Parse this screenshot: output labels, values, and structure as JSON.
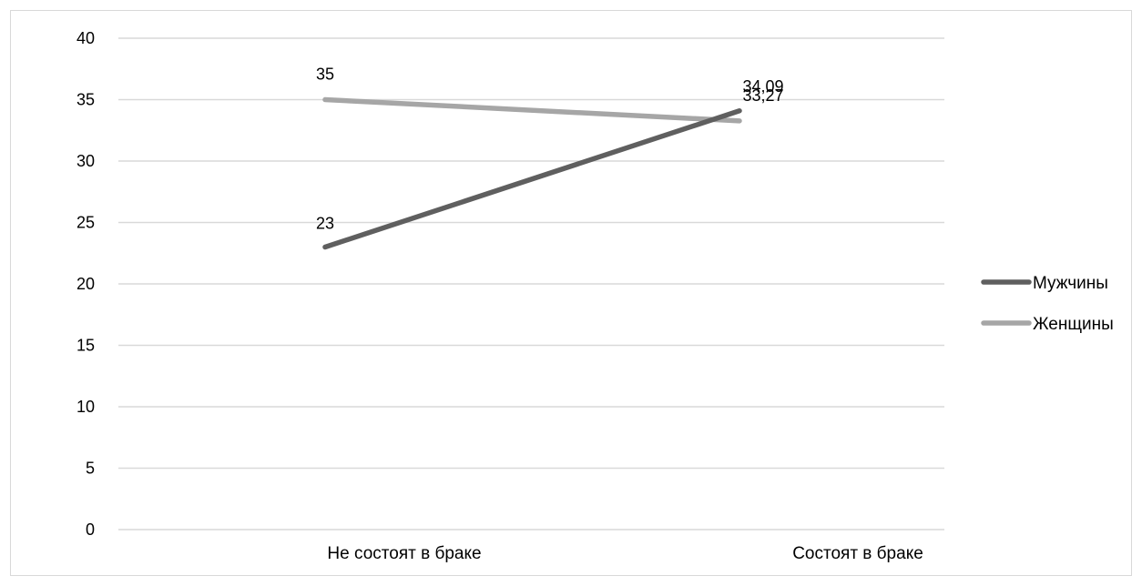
{
  "chart_data": {
    "type": "line",
    "title": "",
    "xlabel": "",
    "ylabel": "",
    "categories": [
      "Не состоят в браке",
      "Состоят в браке"
    ],
    "ylim": [
      0,
      40
    ],
    "yticks": [
      "0",
      "5",
      "10",
      "15",
      "20",
      "25",
      "30",
      "35",
      "40"
    ],
    "grid": true,
    "legend_position": "right",
    "series": [
      {
        "name": "Мужчины",
        "values": [
          23,
          34.09
        ],
        "labels": [
          "23",
          "34,09"
        ],
        "color": "#5f5f5f"
      },
      {
        "name": "Женщины",
        "values": [
          35,
          33.27
        ],
        "labels": [
          "35",
          "33,27"
        ],
        "color": "#a6a6a6"
      }
    ]
  }
}
